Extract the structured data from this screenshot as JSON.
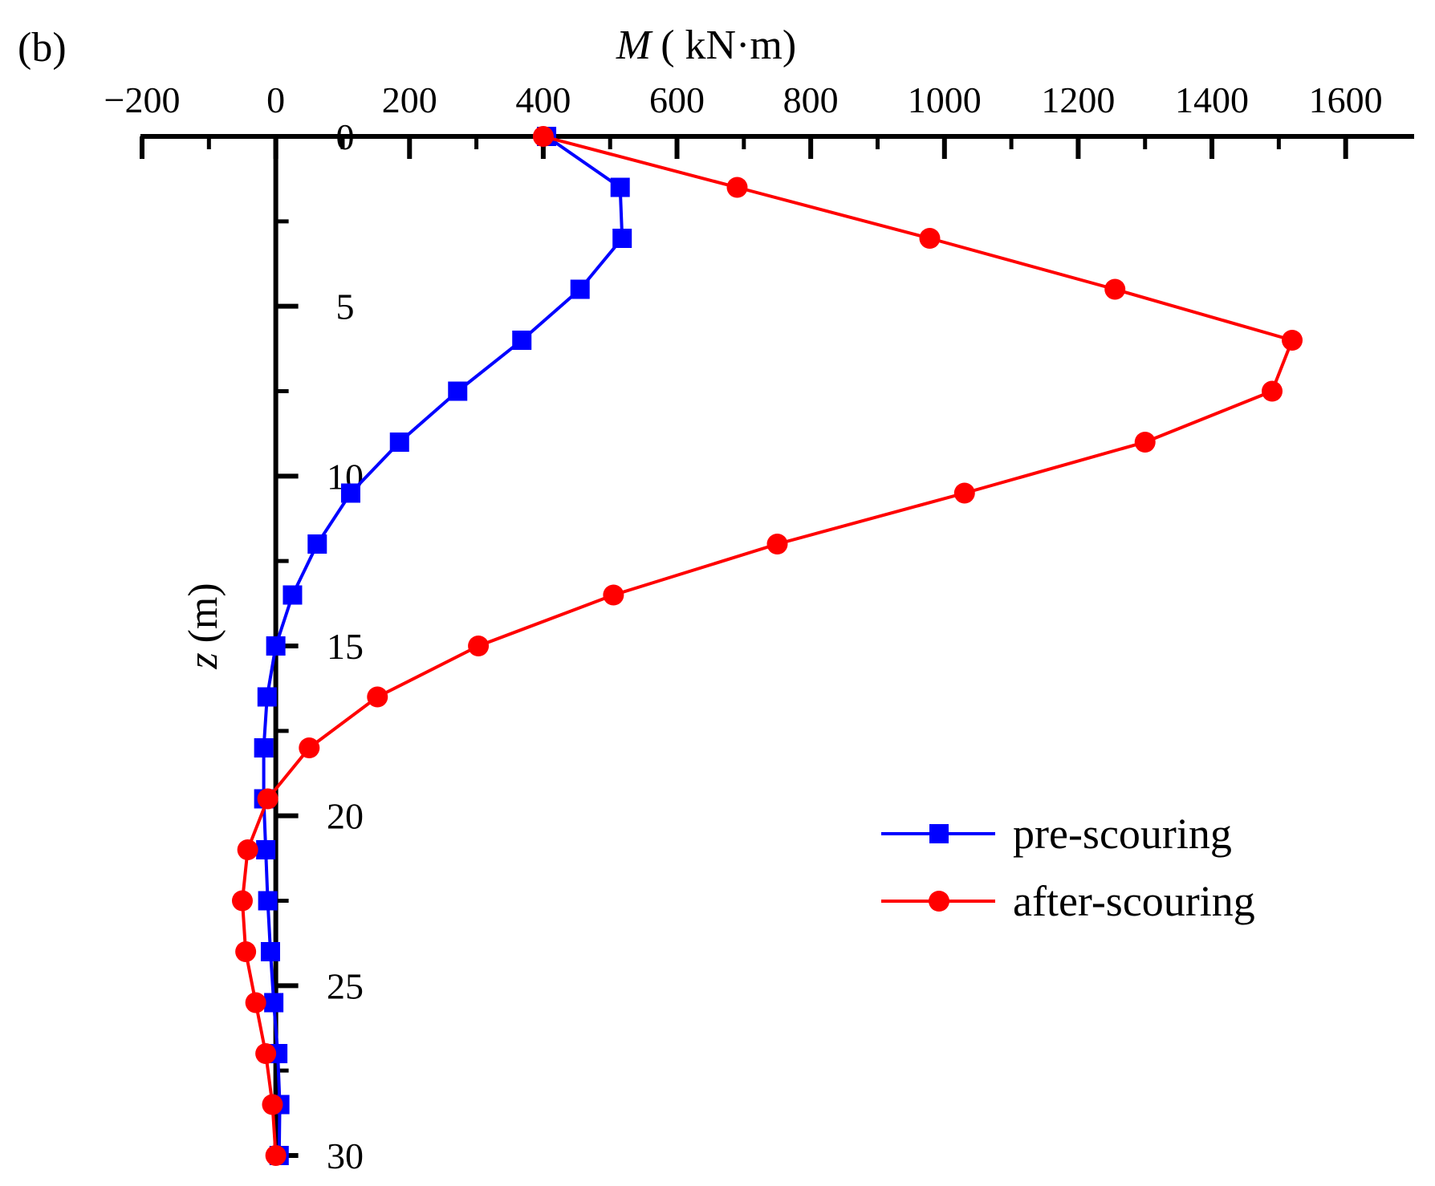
{
  "panel_label": "(b)",
  "chart_data": {
    "type": "line",
    "xlabel_italic": "M",
    "xlabel_rest": "( kN·m)",
    "ylabel_italic": "z",
    "ylabel_rest": "(m)",
    "xlim": [
      -200,
      1700
    ],
    "ylim": [
      0,
      30
    ],
    "y_inverted": true,
    "x_axis_position": "top",
    "y_axis_at_x": 0,
    "x_ticks": [
      -200,
      0,
      200,
      400,
      600,
      800,
      1000,
      1200,
      1400,
      1600
    ],
    "x_tick_labels": [
      "−200",
      "0",
      "200",
      "400",
      "600",
      "800",
      "1000",
      "1200",
      "1400",
      "1600"
    ],
    "y_ticks": [
      0,
      5,
      10,
      15,
      20,
      25,
      30
    ],
    "y_tick_labels": [
      "0",
      "5",
      "10",
      "15",
      "20",
      "25",
      "30"
    ],
    "grid": false,
    "legend_position": "bottom-right",
    "series": [
      {
        "name": "pre-scouring",
        "color": "#0000ff",
        "marker": "square",
        "points": [
          {
            "x": 405,
            "y": 0
          },
          {
            "x": 515,
            "y": 1.5
          },
          {
            "x": 518,
            "y": 3
          },
          {
            "x": 455,
            "y": 4.5
          },
          {
            "x": 368,
            "y": 6
          },
          {
            "x": 272,
            "y": 7.5
          },
          {
            "x": 185,
            "y": 9
          },
          {
            "x": 112,
            "y": 10.5
          },
          {
            "x": 62,
            "y": 12
          },
          {
            "x": 25,
            "y": 13.5
          },
          {
            "x": 0,
            "y": 15
          },
          {
            "x": -13,
            "y": 16.5
          },
          {
            "x": -18,
            "y": 18
          },
          {
            "x": -18,
            "y": 19.5
          },
          {
            "x": -15,
            "y": 21
          },
          {
            "x": -12,
            "y": 22.5
          },
          {
            "x": -8,
            "y": 24
          },
          {
            "x": -3,
            "y": 25.5
          },
          {
            "x": 3,
            "y": 27
          },
          {
            "x": 6,
            "y": 28.5
          },
          {
            "x": 5,
            "y": 30
          }
        ]
      },
      {
        "name": "after-scouring",
        "color": "#ff0000",
        "marker": "circle",
        "points": [
          {
            "x": 400,
            "y": 0
          },
          {
            "x": 690,
            "y": 1.5
          },
          {
            "x": 978,
            "y": 3
          },
          {
            "x": 1255,
            "y": 4.5
          },
          {
            "x": 1520,
            "y": 6
          },
          {
            "x": 1490,
            "y": 7.5
          },
          {
            "x": 1300,
            "y": 9
          },
          {
            "x": 1030,
            "y": 10.5
          },
          {
            "x": 750,
            "y": 12
          },
          {
            "x": 505,
            "y": 13.5
          },
          {
            "x": 303,
            "y": 15
          },
          {
            "x": 152,
            "y": 16.5
          },
          {
            "x": 50,
            "y": 18
          },
          {
            "x": -12,
            "y": 19.5
          },
          {
            "x": -42,
            "y": 21
          },
          {
            "x": -50,
            "y": 22.5
          },
          {
            "x": -45,
            "y": 24
          },
          {
            "x": -30,
            "y": 25.5
          },
          {
            "x": -15,
            "y": 27
          },
          {
            "x": -5,
            "y": 28.5
          },
          {
            "x": 0,
            "y": 30
          }
        ]
      }
    ]
  }
}
